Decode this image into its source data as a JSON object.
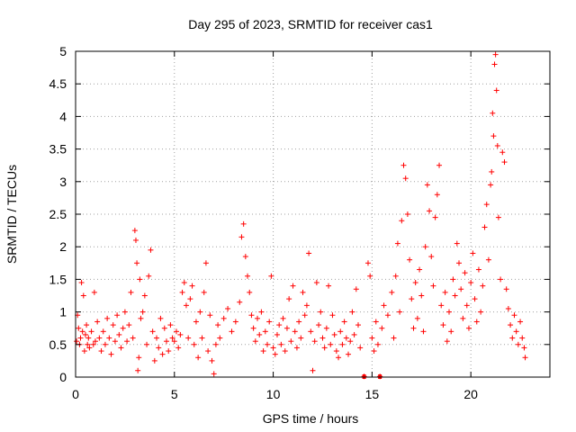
{
  "chart_data": {
    "type": "scatter",
    "title": "Day 295 of 2023, SRMTID for receiver cas1",
    "xlabel": "GPS time / hours",
    "ylabel": "SRMTID / TECUs",
    "xlim": [
      0,
      24
    ],
    "ylim": [
      0,
      5
    ],
    "x_ticks": [
      0,
      5,
      10,
      15,
      20
    ],
    "x_tick_labels": [
      "0",
      "5",
      "10",
      "15",
      "20"
    ],
    "y_ticks": [
      0,
      0.5,
      1,
      1.5,
      2,
      2.5,
      3,
      3.5,
      4,
      4.5,
      5
    ],
    "y_tick_labels": [
      "0",
      "0.5",
      "1",
      "1.5",
      "2",
      "2.5",
      "3",
      "3.5",
      "4",
      "4.5",
      "5"
    ],
    "grid": true,
    "marker": "+",
    "series_color": "#ff0000",
    "series": [
      {
        "name": "SRMTID",
        "points": [
          [
            0.05,
            0.55
          ],
          [
            0.1,
            0.95
          ],
          [
            0.15,
            0.75
          ],
          [
            0.2,
            0.5
          ],
          [
            0.25,
            0.6
          ],
          [
            0.3,
            1.45
          ],
          [
            0.35,
            0.7
          ],
          [
            0.4,
            1.25
          ],
          [
            0.45,
            0.4
          ],
          [
            0.5,
            0.65
          ],
          [
            0.55,
            0.8
          ],
          [
            0.6,
            0.5
          ],
          [
            0.65,
            0.6
          ],
          [
            0.7,
            0.45
          ],
          [
            0.8,
            0.7
          ],
          [
            0.9,
            0.5
          ],
          [
            0.95,
            1.3
          ],
          [
            1.0,
            0.55
          ],
          [
            1.1,
            0.85
          ],
          [
            1.2,
            0.6
          ],
          [
            1.3,
            0.4
          ],
          [
            1.4,
            0.7
          ],
          [
            1.5,
            0.5
          ],
          [
            1.6,
            0.9
          ],
          [
            1.7,
            0.6
          ],
          [
            1.8,
            0.35
          ],
          [
            1.9,
            0.8
          ],
          [
            2.0,
            0.55
          ],
          [
            2.1,
            0.95
          ],
          [
            2.2,
            0.65
          ],
          [
            2.3,
            0.45
          ],
          [
            2.4,
            0.75
          ],
          [
            2.5,
            1.0
          ],
          [
            2.6,
            0.55
          ],
          [
            2.7,
            0.8
          ],
          [
            2.8,
            1.3
          ],
          [
            2.9,
            0.6
          ],
          [
            3.0,
            2.25
          ],
          [
            3.05,
            2.1
          ],
          [
            3.1,
            1.75
          ],
          [
            3.15,
            0.1
          ],
          [
            3.2,
            0.3
          ],
          [
            3.25,
            1.5
          ],
          [
            3.3,
            0.9
          ],
          [
            3.4,
            1.0
          ],
          [
            3.5,
            1.25
          ],
          [
            3.6,
            0.5
          ],
          [
            3.7,
            1.55
          ],
          [
            3.8,
            1.95
          ],
          [
            3.9,
            0.7
          ],
          [
            4.0,
            0.25
          ],
          [
            4.1,
            0.6
          ],
          [
            4.2,
            0.45
          ],
          [
            4.3,
            0.9
          ],
          [
            4.4,
            0.35
          ],
          [
            4.5,
            0.75
          ],
          [
            4.6,
            0.55
          ],
          [
            4.7,
            0.4
          ],
          [
            4.8,
            0.8
          ],
          [
            4.9,
            0.6
          ],
          [
            5.0,
            0.55
          ],
          [
            5.1,
            0.7
          ],
          [
            5.2,
            0.45
          ],
          [
            5.3,
            0.65
          ],
          [
            5.4,
            1.3
          ],
          [
            5.5,
            1.45
          ],
          [
            5.6,
            1.1
          ],
          [
            5.7,
            0.6
          ],
          [
            5.8,
            1.2
          ],
          [
            5.9,
            1.4
          ],
          [
            6.0,
            0.5
          ],
          [
            6.1,
            0.85
          ],
          [
            6.2,
            0.3
          ],
          [
            6.3,
            1.0
          ],
          [
            6.4,
            0.6
          ],
          [
            6.5,
            1.3
          ],
          [
            6.6,
            1.75
          ],
          [
            6.7,
            0.4
          ],
          [
            6.8,
            0.95
          ],
          [
            6.9,
            0.25
          ],
          [
            7.0,
            0.05
          ],
          [
            7.1,
            0.5
          ],
          [
            7.2,
            0.8
          ],
          [
            7.3,
            0.6
          ],
          [
            7.5,
            0.9
          ],
          [
            7.7,
            1.05
          ],
          [
            7.9,
            0.7
          ],
          [
            8.1,
            0.85
          ],
          [
            8.3,
            1.15
          ],
          [
            8.4,
            2.15
          ],
          [
            8.5,
            2.35
          ],
          [
            8.6,
            1.85
          ],
          [
            8.7,
            1.55
          ],
          [
            8.8,
            1.3
          ],
          [
            8.9,
            0.95
          ],
          [
            9.0,
            0.75
          ],
          [
            9.1,
            0.55
          ],
          [
            9.2,
            0.9
          ],
          [
            9.3,
            0.65
          ],
          [
            9.4,
            1.0
          ],
          [
            9.5,
            0.4
          ],
          [
            9.6,
            0.7
          ],
          [
            9.7,
            0.5
          ],
          [
            9.8,
            0.85
          ],
          [
            9.9,
            1.55
          ],
          [
            10.0,
            0.45
          ],
          [
            10.1,
            0.35
          ],
          [
            10.2,
            0.65
          ],
          [
            10.3,
            0.8
          ],
          [
            10.4,
            0.5
          ],
          [
            10.5,
            0.9
          ],
          [
            10.6,
            0.4
          ],
          [
            10.7,
            0.75
          ],
          [
            10.8,
            1.2
          ],
          [
            10.9,
            0.55
          ],
          [
            11.0,
            1.4
          ],
          [
            11.1,
            0.7
          ],
          [
            11.2,
            0.45
          ],
          [
            11.3,
            0.85
          ],
          [
            11.4,
            0.6
          ],
          [
            11.5,
            1.3
          ],
          [
            11.6,
            0.95
          ],
          [
            11.7,
            1.1
          ],
          [
            11.8,
            1.9
          ],
          [
            11.9,
            0.7
          ],
          [
            12.0,
            0.1
          ],
          [
            12.1,
            0.55
          ],
          [
            12.2,
            1.45
          ],
          [
            12.3,
            0.8
          ],
          [
            12.4,
            1.0
          ],
          [
            12.5,
            0.6
          ],
          [
            12.6,
            0.45
          ],
          [
            12.7,
            0.75
          ],
          [
            12.8,
            1.4
          ],
          [
            12.9,
            0.5
          ],
          [
            13.0,
            0.95
          ],
          [
            13.1,
            0.65
          ],
          [
            13.2,
            0.4
          ],
          [
            13.3,
            0.3
          ],
          [
            13.4,
            0.7
          ],
          [
            13.5,
            0.5
          ],
          [
            13.6,
            0.85
          ],
          [
            13.7,
            0.6
          ],
          [
            13.8,
            0.35
          ],
          [
            13.9,
            0.55
          ],
          [
            14.0,
            1.0
          ],
          [
            14.1,
            0.65
          ],
          [
            14.2,
            1.35
          ],
          [
            14.3,
            0.8
          ],
          [
            14.4,
            0.45
          ],
          [
            14.6,
            0.01
          ],
          [
            14.8,
            1.75
          ],
          [
            14.9,
            1.55
          ],
          [
            15.0,
            0.6
          ],
          [
            15.1,
            0.4
          ],
          [
            15.2,
            0.85
          ],
          [
            15.3,
            0.5
          ],
          [
            15.4,
            0.01
          ],
          [
            15.5,
            0.75
          ],
          [
            15.6,
            1.1
          ],
          [
            15.8,
            0.95
          ],
          [
            16.0,
            1.3
          ],
          [
            16.1,
            0.6
          ],
          [
            16.2,
            1.55
          ],
          [
            16.3,
            2.05
          ],
          [
            16.4,
            1.0
          ],
          [
            16.5,
            2.4
          ],
          [
            16.6,
            3.25
          ],
          [
            16.7,
            3.05
          ],
          [
            16.8,
            2.5
          ],
          [
            16.9,
            1.8
          ],
          [
            17.0,
            1.2
          ],
          [
            17.1,
            0.75
          ],
          [
            17.2,
            1.45
          ],
          [
            17.3,
            0.9
          ],
          [
            17.4,
            1.65
          ],
          [
            17.5,
            1.25
          ],
          [
            17.6,
            0.7
          ],
          [
            17.7,
            2.0
          ],
          [
            17.8,
            2.95
          ],
          [
            17.9,
            2.55
          ],
          [
            18.0,
            1.85
          ],
          [
            18.1,
            1.4
          ],
          [
            18.2,
            2.45
          ],
          [
            18.3,
            2.8
          ],
          [
            18.4,
            3.25
          ],
          [
            18.5,
            1.1
          ],
          [
            18.6,
            0.8
          ],
          [
            18.7,
            1.3
          ],
          [
            18.8,
            0.55
          ],
          [
            18.9,
            1.0
          ],
          [
            19.0,
            0.7
          ],
          [
            19.1,
            1.5
          ],
          [
            19.2,
            1.25
          ],
          [
            19.3,
            2.05
          ],
          [
            19.4,
            1.75
          ],
          [
            19.5,
            1.35
          ],
          [
            19.6,
            0.9
          ],
          [
            19.7,
            1.6
          ],
          [
            19.8,
            1.1
          ],
          [
            19.9,
            0.75
          ],
          [
            20.0,
            1.45
          ],
          [
            20.1,
            1.9
          ],
          [
            20.2,
            1.2
          ],
          [
            20.3,
            0.85
          ],
          [
            20.4,
            1.65
          ],
          [
            20.5,
            1.0
          ],
          [
            20.6,
            1.4
          ],
          [
            20.7,
            2.3
          ],
          [
            20.8,
            2.65
          ],
          [
            20.9,
            1.8
          ],
          [
            21.0,
            2.95
          ],
          [
            21.05,
            3.15
          ],
          [
            21.1,
            4.05
          ],
          [
            21.15,
            3.7
          ],
          [
            21.2,
            4.8
          ],
          [
            21.25,
            4.95
          ],
          [
            21.3,
            4.4
          ],
          [
            21.35,
            3.55
          ],
          [
            21.4,
            2.45
          ],
          [
            21.5,
            1.5
          ],
          [
            21.6,
            3.45
          ],
          [
            21.7,
            3.3
          ],
          [
            21.8,
            1.35
          ],
          [
            21.9,
            1.05
          ],
          [
            22.0,
            0.8
          ],
          [
            22.1,
            0.6
          ],
          [
            22.2,
            0.95
          ],
          [
            22.3,
            0.7
          ],
          [
            22.4,
            0.5
          ],
          [
            22.5,
            0.85
          ],
          [
            22.6,
            0.6
          ],
          [
            22.7,
            0.45
          ],
          [
            22.75,
            0.3
          ]
        ]
      }
    ],
    "x_axis_markers": [
      14.6,
      15.4
    ]
  }
}
